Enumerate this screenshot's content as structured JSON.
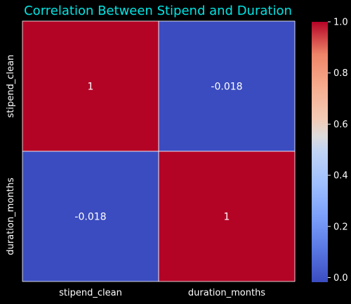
{
  "chart_data": {
    "type": "heatmap",
    "title": "Correlation Between Stipend and Duration",
    "x_categories": [
      "stipend_clean",
      "duration_months"
    ],
    "y_categories": [
      "stipend_clean",
      "duration_months"
    ],
    "values": [
      [
        1,
        -0.018
      ],
      [
        -0.018,
        1
      ]
    ],
    "cell_labels": [
      [
        "1",
        "-0.018"
      ],
      [
        "-0.018",
        "1"
      ]
    ],
    "colormap": "coolwarm",
    "colorbar": {
      "range": [
        -0.018,
        1
      ],
      "ticks": [
        0.0,
        0.2,
        0.4,
        0.6,
        0.8,
        1.0
      ],
      "tick_labels": [
        "0.0",
        "0.2",
        "0.4",
        "0.6",
        "0.8",
        "1.0"
      ]
    },
    "colors": {
      "title": "#00e5e5",
      "background": "#000000",
      "text": "#ffffff",
      "cell_border": "#ffffff"
    }
  }
}
